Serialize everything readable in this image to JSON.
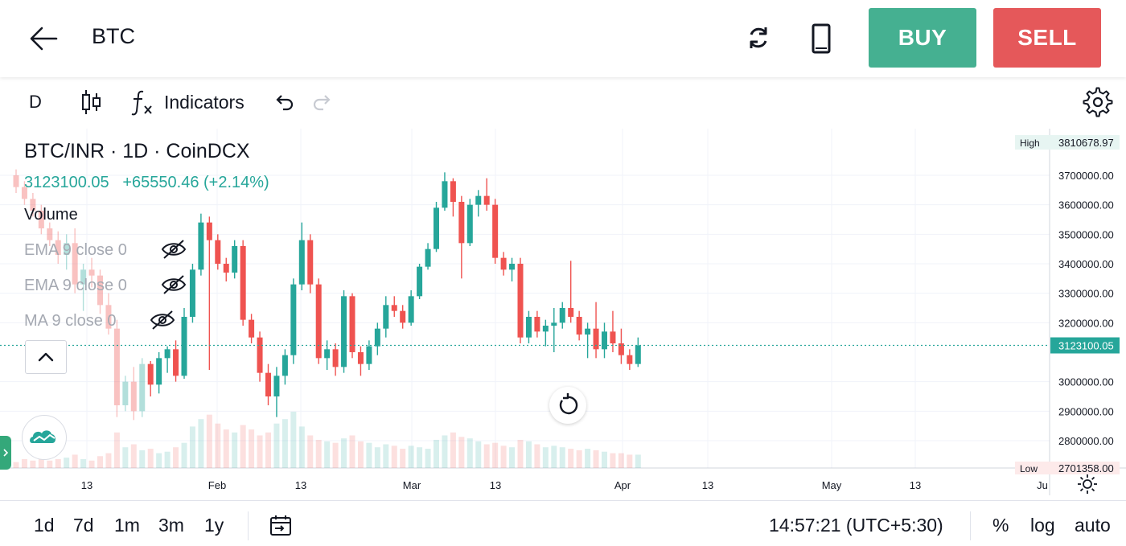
{
  "header": {
    "title": "BTC",
    "buy_label": "BUY",
    "sell_label": "SELL"
  },
  "toolbar": {
    "interval": "D",
    "indicators_label": "Indicators",
    "icons": [
      "candlestick-icon",
      "function-icon",
      "undo-icon",
      "redo-icon",
      "gear-icon"
    ]
  },
  "legend": {
    "symbol": "BTC/INR · 1D · CoinDCX",
    "last_price": "3123100.05",
    "change": "+65550.46 (+2.14%)",
    "volume_label": "Volume",
    "ema1_label": "EMA 9 close 0",
    "ema2_label": "EMA 9 close 0",
    "ma_label": "MA 9 close 0"
  },
  "price_axis": {
    "high_tag_label": "High",
    "high_value": "3810678.97",
    "current_value": "3123100.05",
    "low_tag_label": "Low",
    "low_value": "2701358.00",
    "ticks": [
      "3700000.00",
      "3600000.00",
      "3500000.00",
      "3400000.00",
      "3300000.00",
      "3200000.00",
      "3000000.00",
      "2900000.00",
      "2800000.00"
    ]
  },
  "time_axis": {
    "labels": [
      "13",
      "Feb",
      "13",
      "Mar",
      "13",
      "Apr",
      "13",
      "May",
      "13",
      "Ju"
    ]
  },
  "colors": {
    "up": "#26a69a",
    "down": "#ef5350",
    "buy": "#45b091",
    "sell": "#e5585a",
    "grid": "#f0f3fa"
  },
  "bottom": {
    "ranges": [
      "1d",
      "7d",
      "1m",
      "3m",
      "1y"
    ],
    "clock": "14:57:21 (UTC+5:30)",
    "percent_label": "%",
    "log_label": "log",
    "auto_label": "auto"
  },
  "chart_data": {
    "type": "candlestick",
    "title": "BTC/INR · 1D · CoinDCX",
    "ylim": [
      2701358,
      3810678.97
    ],
    "current_price": 3123100.05,
    "candles": [
      {
        "o": 3700000,
        "h": 3720000,
        "l": 3640000,
        "c": 3660000
      },
      {
        "o": 3660000,
        "h": 3680000,
        "l": 3600000,
        "c": 3620000
      },
      {
        "o": 3620000,
        "h": 3640000,
        "l": 3560000,
        "c": 3580000
      },
      {
        "o": 3580000,
        "h": 3600000,
        "l": 3500000,
        "c": 3520000
      },
      {
        "o": 3520000,
        "h": 3540000,
        "l": 3460000,
        "c": 3480000
      },
      {
        "o": 3480000,
        "h": 3510000,
        "l": 3400000,
        "c": 3430000
      },
      {
        "o": 3430000,
        "h": 3500000,
        "l": 3380000,
        "c": 3470000
      },
      {
        "o": 3470000,
        "h": 3520000,
        "l": 3300000,
        "c": 3330000
      },
      {
        "o": 3330000,
        "h": 3400000,
        "l": 3240000,
        "c": 3380000
      },
      {
        "o": 3380000,
        "h": 3420000,
        "l": 3320000,
        "c": 3360000
      },
      {
        "o": 3360000,
        "h": 3380000,
        "l": 3230000,
        "c": 3260000
      },
      {
        "o": 3260000,
        "h": 3300000,
        "l": 3160000,
        "c": 3180000
      },
      {
        "o": 3180000,
        "h": 3210000,
        "l": 2880000,
        "c": 2920000
      },
      {
        "o": 2920000,
        "h": 3020000,
        "l": 2900000,
        "c": 3000000
      },
      {
        "o": 3000000,
        "h": 3050000,
        "l": 2870000,
        "c": 2900000
      },
      {
        "o": 2900000,
        "h": 3080000,
        "l": 2880000,
        "c": 3060000
      },
      {
        "o": 3060000,
        "h": 3070000,
        "l": 2950000,
        "c": 2990000
      },
      {
        "o": 2990000,
        "h": 3100000,
        "l": 2960000,
        "c": 3080000
      },
      {
        "o": 3080000,
        "h": 3120000,
        "l": 3030000,
        "c": 3110000
      },
      {
        "o": 3110000,
        "h": 3140000,
        "l": 3000000,
        "c": 3020000
      },
      {
        "o": 3020000,
        "h": 3250000,
        "l": 3010000,
        "c": 3220000
      },
      {
        "o": 3220000,
        "h": 3400000,
        "l": 3200000,
        "c": 3380000
      },
      {
        "o": 3380000,
        "h": 3570000,
        "l": 3360000,
        "c": 3540000
      },
      {
        "o": 3540000,
        "h": 3560000,
        "l": 3040000,
        "c": 3480000
      },
      {
        "o": 3480000,
        "h": 3500000,
        "l": 3380000,
        "c": 3400000
      },
      {
        "o": 3400000,
        "h": 3420000,
        "l": 3340000,
        "c": 3370000
      },
      {
        "o": 3370000,
        "h": 3480000,
        "l": 3350000,
        "c": 3460000
      },
      {
        "o": 3460000,
        "h": 3480000,
        "l": 3190000,
        "c": 3210000
      },
      {
        "o": 3210000,
        "h": 3230000,
        "l": 3130000,
        "c": 3150000
      },
      {
        "o": 3150000,
        "h": 3170000,
        "l": 3000000,
        "c": 3030000
      },
      {
        "o": 3030000,
        "h": 3060000,
        "l": 2920000,
        "c": 2950000
      },
      {
        "o": 2950000,
        "h": 3050000,
        "l": 2880000,
        "c": 3020000
      },
      {
        "o": 3020000,
        "h": 3110000,
        "l": 2990000,
        "c": 3090000
      },
      {
        "o": 3090000,
        "h": 3350000,
        "l": 3060000,
        "c": 3330000
      },
      {
        "o": 3330000,
        "h": 3540000,
        "l": 3310000,
        "c": 3480000
      },
      {
        "o": 3480000,
        "h": 3500000,
        "l": 3300000,
        "c": 3330000
      },
      {
        "o": 3330000,
        "h": 3350000,
        "l": 3060000,
        "c": 3080000
      },
      {
        "o": 3080000,
        "h": 3140000,
        "l": 3040000,
        "c": 3110000
      },
      {
        "o": 3110000,
        "h": 3130000,
        "l": 3020000,
        "c": 3050000
      },
      {
        "o": 3050000,
        "h": 3310000,
        "l": 3030000,
        "c": 3290000
      },
      {
        "o": 3290000,
        "h": 3300000,
        "l": 3080000,
        "c": 3100000
      },
      {
        "o": 3100000,
        "h": 3120000,
        "l": 3020000,
        "c": 3060000
      },
      {
        "o": 3060000,
        "h": 3140000,
        "l": 3040000,
        "c": 3120000
      },
      {
        "o": 3120000,
        "h": 3200000,
        "l": 3090000,
        "c": 3180000
      },
      {
        "o": 3180000,
        "h": 3290000,
        "l": 3150000,
        "c": 3260000
      },
      {
        "o": 3260000,
        "h": 3290000,
        "l": 3220000,
        "c": 3240000
      },
      {
        "o": 3240000,
        "h": 3260000,
        "l": 3180000,
        "c": 3200000
      },
      {
        "o": 3200000,
        "h": 3310000,
        "l": 3190000,
        "c": 3290000
      },
      {
        "o": 3290000,
        "h": 3400000,
        "l": 3280000,
        "c": 3390000
      },
      {
        "o": 3390000,
        "h": 3470000,
        "l": 3380000,
        "c": 3450000
      },
      {
        "o": 3450000,
        "h": 3610000,
        "l": 3440000,
        "c": 3590000
      },
      {
        "o": 3590000,
        "h": 3710000,
        "l": 3580000,
        "c": 3680000
      },
      {
        "o": 3680000,
        "h": 3690000,
        "l": 3560000,
        "c": 3610000
      },
      {
        "o": 3610000,
        "h": 3630000,
        "l": 3350000,
        "c": 3470000
      },
      {
        "o": 3470000,
        "h": 3620000,
        "l": 3460000,
        "c": 3600000
      },
      {
        "o": 3600000,
        "h": 3650000,
        "l": 3560000,
        "c": 3630000
      },
      {
        "o": 3630000,
        "h": 3690000,
        "l": 3580000,
        "c": 3600000
      },
      {
        "o": 3600000,
        "h": 3620000,
        "l": 3400000,
        "c": 3420000
      },
      {
        "o": 3420000,
        "h": 3440000,
        "l": 3360000,
        "c": 3380000
      },
      {
        "o": 3380000,
        "h": 3420000,
        "l": 3340000,
        "c": 3400000
      },
      {
        "o": 3400000,
        "h": 3420000,
        "l": 3130000,
        "c": 3150000
      },
      {
        "o": 3150000,
        "h": 3240000,
        "l": 3130000,
        "c": 3220000
      },
      {
        "o": 3220000,
        "h": 3240000,
        "l": 3150000,
        "c": 3170000
      },
      {
        "o": 3170000,
        "h": 3210000,
        "l": 3120000,
        "c": 3190000
      },
      {
        "o": 3190000,
        "h": 3250000,
        "l": 3100000,
        "c": 3200000
      },
      {
        "o": 3200000,
        "h": 3270000,
        "l": 3180000,
        "c": 3250000
      },
      {
        "o": 3250000,
        "h": 3410000,
        "l": 3200000,
        "c": 3220000
      },
      {
        "o": 3220000,
        "h": 3240000,
        "l": 3140000,
        "c": 3160000
      },
      {
        "o": 3160000,
        "h": 3200000,
        "l": 3080000,
        "c": 3180000
      },
      {
        "o": 3180000,
        "h": 3270000,
        "l": 3080000,
        "c": 3110000
      },
      {
        "o": 3110000,
        "h": 3200000,
        "l": 3080000,
        "c": 3170000
      },
      {
        "o": 3170000,
        "h": 3240000,
        "l": 3100000,
        "c": 3130000
      },
      {
        "o": 3130000,
        "h": 3180000,
        "l": 3060000,
        "c": 3090000
      },
      {
        "o": 3090000,
        "h": 3110000,
        "l": 3040000,
        "c": 3060000
      },
      {
        "o": 3060000,
        "h": 3150000,
        "l": 3050000,
        "c": 3123100
      }
    ],
    "volumes": [
      4,
      6,
      5,
      8,
      5,
      6,
      7,
      9,
      6,
      5,
      8,
      10,
      24,
      14,
      16,
      12,
      13,
      10,
      11,
      14,
      17,
      28,
      33,
      36,
      30,
      26,
      24,
      29,
      26,
      22,
      24,
      30,
      33,
      38,
      28,
      22,
      19,
      18,
      17,
      20,
      22,
      18,
      17,
      14,
      16,
      15,
      13,
      15,
      14,
      13,
      19,
      22,
      24,
      21,
      20,
      18,
      16,
      17,
      15,
      14,
      19,
      18,
      16,
      14,
      15,
      14,
      13,
      12,
      13,
      12,
      11,
      10,
      10,
      9,
      9
    ]
  }
}
